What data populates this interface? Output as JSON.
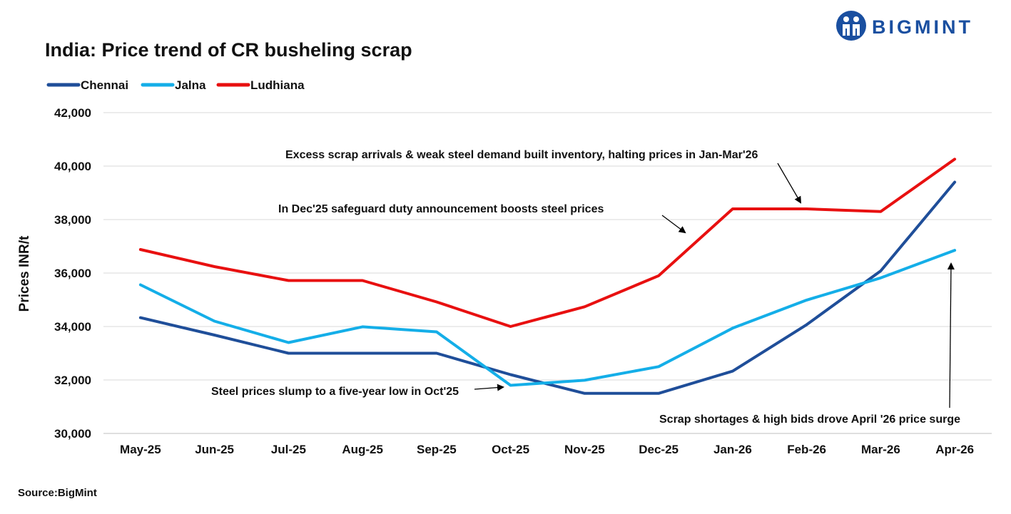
{
  "brand": {
    "name": "BIGMINT",
    "color": "#1a4fa0",
    "icon": "bigmint-logo-icon"
  },
  "source": "Source:BigMint",
  "chart_data": {
    "type": "line",
    "title": "India: Price trend of CR busheling scrap",
    "xlabel": "",
    "ylabel": "Prices INR/t",
    "ylim": [
      30000,
      42000
    ],
    "yticks": [
      30000,
      32000,
      34000,
      36000,
      38000,
      40000,
      42000
    ],
    "ytick_labels": [
      "30,000",
      "32,000",
      "34,000",
      "36,000",
      "38,000",
      "40,000",
      "42,000"
    ],
    "grid": "horizontal",
    "legend": "top-left",
    "categories": [
      "May-25",
      "Jun-25",
      "Jul-25",
      "Aug-25",
      "Sep-25",
      "Oct-25",
      "Nov-25",
      "Dec-25",
      "Jan-26",
      "Feb-26",
      "Mar-26",
      "Apr-26"
    ],
    "series": [
      {
        "name": "Chennai",
        "color": "#1f4e99",
        "values": [
          34330,
          33680,
          33000,
          33000,
          33000,
          32200,
          31500,
          31500,
          32330,
          34070,
          36080,
          39400
        ]
      },
      {
        "name": "Jalna",
        "color": "#14aee8",
        "values": [
          35560,
          34200,
          33400,
          33990,
          33800,
          31800,
          31990,
          32500,
          33940,
          34990,
          35820,
          36850
        ]
      },
      {
        "name": "Ludhiana",
        "color": "#e81010",
        "values": [
          36880,
          36240,
          35720,
          35720,
          34920,
          34000,
          34740,
          35900,
          38400,
          38400,
          38300,
          40260
        ]
      }
    ],
    "annotations": [
      {
        "text": "Excess scrap arrivals & weak steel demand built inventory, halting prices in Jan-Mar'26"
      },
      {
        "text": "In Dec'25 safeguard duty announcement boosts steel prices"
      },
      {
        "text": "Steel prices slump to a five-year low in Oct'25"
      },
      {
        "text": "Scrap shortages & high bids drove April '26 price surge"
      }
    ]
  }
}
